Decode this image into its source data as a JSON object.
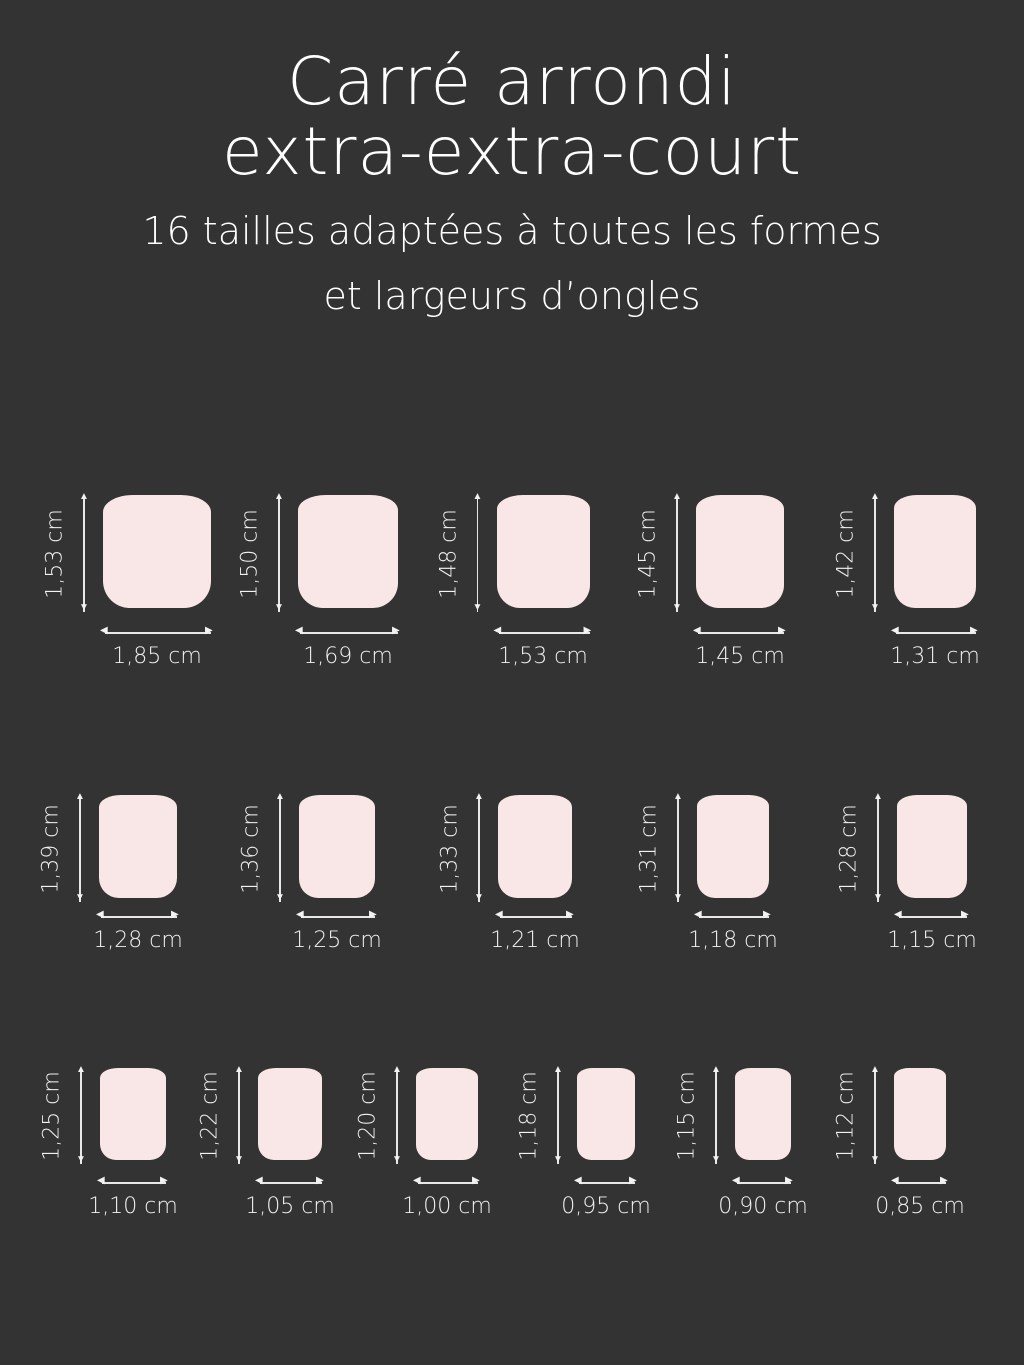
{
  "title": {
    "line1": "Carré arrondi",
    "line2": "extra-extra-court"
  },
  "subtitle": {
    "line1": "16 tailles adaptées à toutes les formes",
    "line2": "et largeurs d’ongles"
  },
  "colors": {
    "background": "#333333",
    "nail": "#f9e6e6",
    "text": "#ffffff"
  },
  "sizes": [
    {
      "height": "1,53 cm",
      "width": "1,85 cm"
    },
    {
      "height": "1,50 cm",
      "width": "1,69 cm"
    },
    {
      "height": "1,48 cm",
      "width": "1,53 cm"
    },
    {
      "height": "1,45 cm",
      "width": "1,45 cm"
    },
    {
      "height": "1,42 cm",
      "width": "1,31 cm"
    },
    {
      "height": "1,39 cm",
      "width": "1,28 cm"
    },
    {
      "height": "1,36 cm",
      "width": "1,25 cm"
    },
    {
      "height": "1,33 cm",
      "width": "1,21 cm"
    },
    {
      "height": "1,31 cm",
      "width": "1,18 cm"
    },
    {
      "height": "1,28 cm",
      "width": "1,15 cm"
    },
    {
      "height": "1,25 cm",
      "width": "1,10 cm"
    },
    {
      "height": "1,22 cm",
      "width": "1,05 cm"
    },
    {
      "height": "1,20 cm",
      "width": "1,00 cm"
    },
    {
      "height": "1,18 cm",
      "width": "0,95 cm"
    },
    {
      "height": "1,15 cm",
      "width": "0,90 cm"
    },
    {
      "height": "1,12 cm",
      "width": "0,85 cm"
    }
  ]
}
